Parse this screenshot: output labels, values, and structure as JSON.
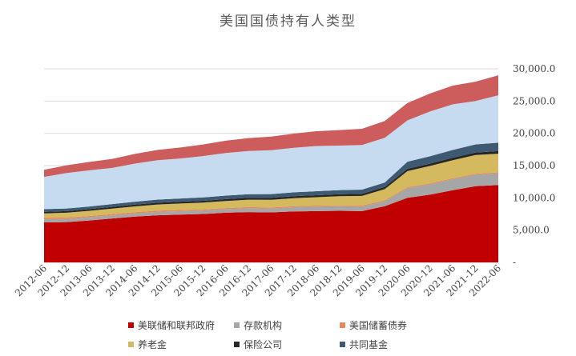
{
  "chart_data": {
    "type": "area",
    "stacked": true,
    "title": "美国国债持有人类型",
    "xlabel": "",
    "ylabel": "",
    "ylim": [
      0,
      30000
    ],
    "y_axis_side": "right",
    "yticks": [
      "-",
      "5,000.0",
      "10,000.0",
      "15,000.0",
      "20,000.0",
      "25,000.0",
      "30,000.0"
    ],
    "grid": true,
    "legend_position": "bottom",
    "x": [
      "2012-06",
      "2012-12",
      "2013-06",
      "2013-12",
      "2014-06",
      "2014-12",
      "2015-06",
      "2015-12",
      "2016-06",
      "2016-12",
      "2017-06",
      "2017-12",
      "2018-06",
      "2018-12",
      "2019-06",
      "2019-12",
      "2020-06",
      "2020-12",
      "2021-06",
      "2021-12",
      "2022-06"
    ],
    "series": [
      {
        "name": "美联储和联邦政府",
        "color": "#c00000",
        "values": [
          6200,
          6250,
          6500,
          6800,
          7100,
          7300,
          7400,
          7500,
          7700,
          7800,
          7750,
          7900,
          7950,
          8000,
          7950,
          8700,
          10000,
          10500,
          11200,
          11800,
          12000
        ]
      },
      {
        "name": "存款机构",
        "color": "#a6a6a6",
        "values": [
          500,
          500,
          500,
          500,
          500,
          550,
          550,
          550,
          550,
          600,
          600,
          650,
          700,
          700,
          700,
          800,
          1500,
          1600,
          1700,
          1800,
          1800
        ]
      },
      {
        "name": "美国储蓄债券",
        "color": "#e2885a",
        "values": [
          200,
          200,
          190,
          190,
          180,
          180,
          175,
          170,
          170,
          165,
          160,
          160,
          155,
          155,
          150,
          150,
          150,
          145,
          145,
          145,
          145
        ]
      },
      {
        "name": "养老金",
        "color": "#d4b95e",
        "values": [
          700,
          750,
          800,
          850,
          900,
          950,
          1000,
          1050,
          1100,
          1150,
          1200,
          1250,
          1300,
          1400,
          1500,
          1700,
          2500,
          2700,
          2800,
          2900,
          2900
        ]
      },
      {
        "name": "保险公司",
        "color": "#262626",
        "values": [
          250,
          250,
          260,
          260,
          270,
          270,
          280,
          280,
          290,
          290,
          300,
          300,
          310,
          310,
          320,
          330,
          360,
          370,
          380,
          390,
          400
        ]
      },
      {
        "name": "共同基金",
        "color": "#3e5a73",
        "values": [
          400,
          400,
          420,
          440,
          460,
          480,
          500,
          520,
          540,
          560,
          580,
          600,
          620,
          640,
          660,
          700,
          1100,
          1150,
          1200,
          1250,
          1300
        ]
      },
      {
        "name": "",
        "color": "#c6dbef",
        "values": [
          5000,
          5500,
          5600,
          5600,
          5900,
          6100,
          6200,
          6400,
          6600,
          6700,
          6800,
          6900,
          7000,
          6900,
          6920,
          6920,
          6390,
          6935,
          7075,
          6715,
          7355
        ]
      },
      {
        "name": "",
        "color": "#cd5c5c",
        "values": [
          1100,
          1200,
          1300,
          1400,
          1500,
          1600,
          1700,
          1800,
          1900,
          2000,
          2100,
          2200,
          2300,
          2400,
          2500,
          2600,
          2700,
          2800,
          2900,
          3000,
          3100
        ]
      }
    ]
  }
}
